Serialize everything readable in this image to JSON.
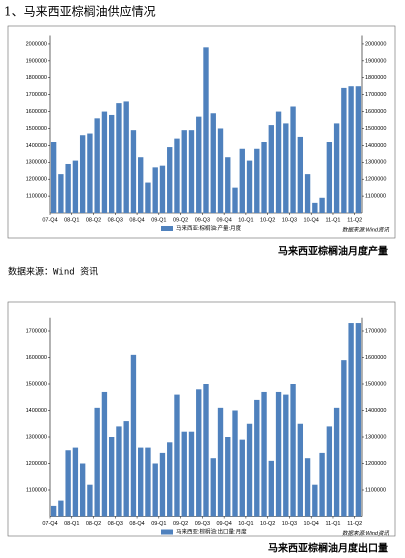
{
  "document": {
    "heading": "1、马来西亚棕榈油供应情况",
    "source": "数据来源：Wind 资讯"
  },
  "chart_data": [
    {
      "type": "bar",
      "title": "马来西亚棕榈油月度产量",
      "legend": "马来西亚:棕榈油:产量:月度",
      "source_note": "数据来源:Wind资讯",
      "color": "#4f81bd",
      "categories": [
        "07-Q4",
        null,
        null,
        "08-Q1",
        null,
        null,
        "08-Q2",
        null,
        null,
        "08-Q3",
        null,
        null,
        "08-Q4",
        null,
        null,
        "09-Q1",
        null,
        null,
        "09-Q2",
        null,
        null,
        "09-Q3",
        null,
        null,
        "09-Q4",
        null,
        null,
        "10-Q1",
        null,
        null,
        "10-Q2",
        null,
        null,
        "10-Q3",
        null,
        null,
        "10-Q4",
        null,
        null,
        "11-Q1",
        null,
        null,
        "11-Q2"
      ],
      "values": [
        1420000,
        1230000,
        1290000,
        1310000,
        1460000,
        1470000,
        1560000,
        1600000,
        1580000,
        1650000,
        1660000,
        1490000,
        1330000,
        1180000,
        1270000,
        1280000,
        1390000,
        1440000,
        1490000,
        1490000,
        1570000,
        1980000,
        1590000,
        1500000,
        1330000,
        1150000,
        1380000,
        1310000,
        1380000,
        1420000,
        1520000,
        1600000,
        1530000,
        1630000,
        1450000,
        1230000,
        1060000,
        1090000,
        1420000,
        1530000,
        1740000,
        1750000,
        1750000
      ],
      "ylim": [
        1000000,
        2050000
      ],
      "yticks": [
        1100000,
        1200000,
        1300000,
        1400000,
        1500000,
        1600000,
        1700000,
        1800000,
        1900000,
        2000000
      ]
    },
    {
      "type": "bar",
      "title": "马来西亚棕榈油月度出口量",
      "legend": "马来西亚:棕榈油:出口量:月度",
      "source_note": "数据来源:Wind资讯",
      "color": "#4f81bd",
      "categories": [
        "07-Q4",
        null,
        null,
        "08-Q1",
        null,
        null,
        "08-Q2",
        null,
        null,
        "08-Q3",
        null,
        null,
        "08-Q4",
        null,
        null,
        "09-Q1",
        null,
        null,
        "09-Q2",
        null,
        null,
        "09-Q3",
        null,
        null,
        "09-Q4",
        null,
        null,
        "10-Q1",
        null,
        null,
        "10-Q2",
        null,
        null,
        "10-Q3",
        null,
        null,
        "10-Q4",
        null,
        null,
        "11-Q1",
        null,
        null,
        "11-Q2"
      ],
      "values": [
        1040000,
        1060000,
        1250000,
        1260000,
        1200000,
        1120000,
        1410000,
        1470000,
        1300000,
        1340000,
        1360000,
        1610000,
        1260000,
        1260000,
        1200000,
        1240000,
        1280000,
        1460000,
        1320000,
        1320000,
        1480000,
        1500000,
        1220000,
        1410000,
        1300000,
        1400000,
        1290000,
        1350000,
        1440000,
        1470000,
        1210000,
        1470000,
        1460000,
        1500000,
        1350000,
        1220000,
        1120000,
        1240000,
        1340000,
        1410000,
        1590000,
        1730000,
        1730000
      ],
      "ylim": [
        1000000,
        1750000
      ],
      "yticks": [
        1100000,
        1200000,
        1300000,
        1400000,
        1500000,
        1600000,
        1700000
      ]
    }
  ]
}
